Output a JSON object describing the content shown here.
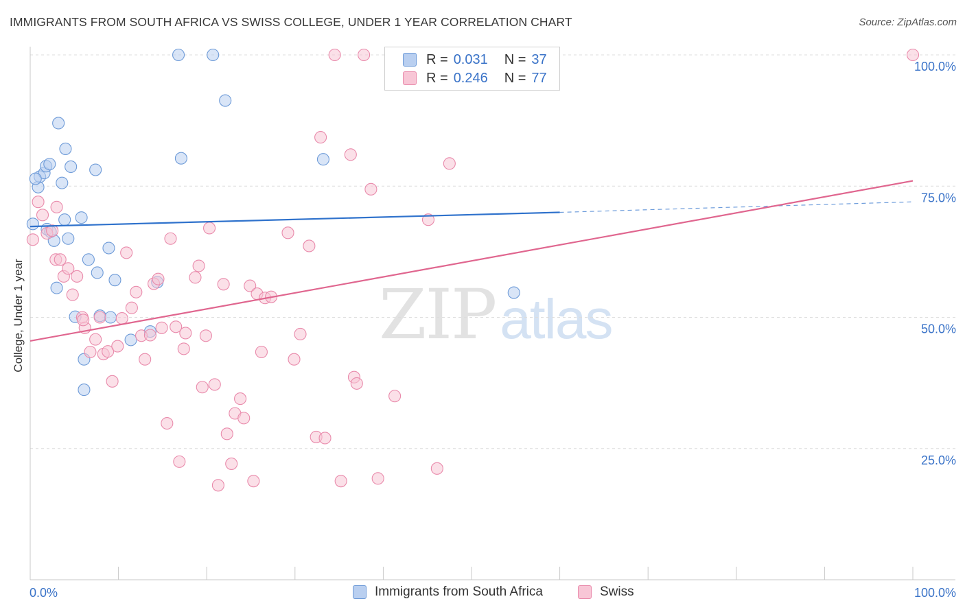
{
  "title": "IMMIGRANTS FROM SOUTH AFRICA VS SWISS COLLEGE, UNDER 1 YEAR CORRELATION CHART",
  "source": "Source: ZipAtlas.com",
  "watermark": {
    "zip": "ZIP",
    "atlas": "atlas"
  },
  "legend": {
    "r_label": "R =",
    "n_label": "N =",
    "series": [
      {
        "r": "0.031",
        "n": "37"
      },
      {
        "r": "0.246",
        "n": "77"
      }
    ]
  },
  "colors": {
    "blue_fill": "#b9cff0",
    "blue_stroke": "#6e9bd8",
    "blue_line": "#2f72cc",
    "pink_fill": "#f8c6d6",
    "pink_stroke": "#e98aab",
    "pink_line": "#e0668f",
    "tick_label": "#3a73c8",
    "grid": "#dcdcdc"
  },
  "chart_data": {
    "type": "scatter",
    "title": "IMMIGRANTS FROM SOUTH AFRICA VS SWISS COLLEGE, UNDER 1 YEAR CORRELATION CHART",
    "xlabel": "",
    "ylabel": "College, Under 1 year",
    "xlim": [
      0,
      100
    ],
    "ylim": [
      0,
      100
    ],
    "x_ticks": [
      "0.0%",
      "100.0%"
    ],
    "y_ticks": [
      {
        "value": 25,
        "label": "25.0%"
      },
      {
        "value": 50,
        "label": "50.0%"
      },
      {
        "value": 75,
        "label": "75.0%"
      },
      {
        "value": 100,
        "label": "100.0%"
      }
    ],
    "series": [
      {
        "name": "Immigrants from South Africa",
        "color": "blue",
        "trend": {
          "x0": 0,
          "y0": 67.3,
          "x1": 60,
          "y1": 70.0,
          "dash_to": 100,
          "dash_y": 72.0
        },
        "points": [
          [
            0.3,
            67.8
          ],
          [
            0.9,
            74.8
          ],
          [
            1.1,
            76.8
          ],
          [
            1.6,
            77.5
          ],
          [
            1.8,
            78.8
          ],
          [
            2.2,
            79.2
          ],
          [
            1.9,
            66.8
          ],
          [
            2.3,
            66.3
          ],
          [
            2.7,
            64.6
          ],
          [
            3.0,
            55.6
          ],
          [
            3.2,
            87.0
          ],
          [
            3.6,
            75.6
          ],
          [
            3.9,
            68.6
          ],
          [
            4.0,
            82.1
          ],
          [
            4.3,
            65.0
          ],
          [
            4.6,
            78.7
          ],
          [
            5.1,
            50.1
          ],
          [
            5.8,
            69.0
          ],
          [
            6.1,
            42.0
          ],
          [
            6.1,
            36.2
          ],
          [
            6.6,
            61.0
          ],
          [
            7.4,
            78.1
          ],
          [
            7.6,
            58.5
          ],
          [
            7.9,
            50.3
          ],
          [
            8.9,
            63.2
          ],
          [
            9.1,
            50.0
          ],
          [
            9.6,
            57.1
          ],
          [
            11.4,
            45.7
          ],
          [
            13.6,
            47.3
          ],
          [
            14.4,
            56.7
          ],
          [
            16.8,
            100.0
          ],
          [
            17.1,
            80.3
          ],
          [
            20.7,
            100.0
          ],
          [
            22.1,
            91.3
          ],
          [
            33.2,
            80.1
          ],
          [
            54.8,
            54.7
          ],
          [
            0.6,
            76.4
          ]
        ]
      },
      {
        "name": "Swiss",
        "color": "pink",
        "trend": {
          "x0": 0,
          "y0": 45.5,
          "x1": 100,
          "y1": 76.0
        },
        "points": [
          [
            0.3,
            64.8
          ],
          [
            0.9,
            72.0
          ],
          [
            1.4,
            69.5
          ],
          [
            1.9,
            66.0
          ],
          [
            2.5,
            66.5
          ],
          [
            2.9,
            61.0
          ],
          [
            3.4,
            61.0
          ],
          [
            3.8,
            57.8
          ],
          [
            4.3,
            59.3
          ],
          [
            4.8,
            54.3
          ],
          [
            5.3,
            57.8
          ],
          [
            5.9,
            50.0
          ],
          [
            6.2,
            48.0
          ],
          [
            6.8,
            43.4
          ],
          [
            7.4,
            45.8
          ],
          [
            7.9,
            50.0
          ],
          [
            8.3,
            43.0
          ],
          [
            8.8,
            43.5
          ],
          [
            9.3,
            37.8
          ],
          [
            9.9,
            44.5
          ],
          [
            10.4,
            49.8
          ],
          [
            10.9,
            62.3
          ],
          [
            11.5,
            51.8
          ],
          [
            12.0,
            54.8
          ],
          [
            12.6,
            46.5
          ],
          [
            13.0,
            42.0
          ],
          [
            13.6,
            46.6
          ],
          [
            14.0,
            56.4
          ],
          [
            14.5,
            57.3
          ],
          [
            14.9,
            48.0
          ],
          [
            15.5,
            29.8
          ],
          [
            15.9,
            65.0
          ],
          [
            16.5,
            48.2
          ],
          [
            16.9,
            22.5
          ],
          [
            17.4,
            44.0
          ],
          [
            17.6,
            47.0
          ],
          [
            18.7,
            57.6
          ],
          [
            19.1,
            59.8
          ],
          [
            19.5,
            36.7
          ],
          [
            19.9,
            46.5
          ],
          [
            20.3,
            67.0
          ],
          [
            20.9,
            37.2
          ],
          [
            21.3,
            18.0
          ],
          [
            21.9,
            56.3
          ],
          [
            22.3,
            27.8
          ],
          [
            22.8,
            22.1
          ],
          [
            23.2,
            31.7
          ],
          [
            23.8,
            34.5
          ],
          [
            24.2,
            30.8
          ],
          [
            24.9,
            56.0
          ],
          [
            25.3,
            18.8
          ],
          [
            25.7,
            54.5
          ],
          [
            26.2,
            43.4
          ],
          [
            26.6,
            53.7
          ],
          [
            27.3,
            53.9
          ],
          [
            29.2,
            66.1
          ],
          [
            29.9,
            42.0
          ],
          [
            30.6,
            46.8
          ],
          [
            31.6,
            63.6
          ],
          [
            32.4,
            27.2
          ],
          [
            32.9,
            84.3
          ],
          [
            33.4,
            27.0
          ],
          [
            34.5,
            100.0
          ],
          [
            35.2,
            18.8
          ],
          [
            36.3,
            81.0
          ],
          [
            36.7,
            38.6
          ],
          [
            37.0,
            37.4
          ],
          [
            37.8,
            100.0
          ],
          [
            38.6,
            74.4
          ],
          [
            39.4,
            19.3
          ],
          [
            41.3,
            35.0
          ],
          [
            45.1,
            68.6
          ],
          [
            46.1,
            21.2
          ],
          [
            47.5,
            79.3
          ],
          [
            100.0,
            100.0
          ],
          [
            3.0,
            71.0
          ],
          [
            6.0,
            49.5
          ]
        ]
      }
    ]
  },
  "bottom_legend": [
    {
      "label": "Immigrants from South Africa"
    },
    {
      "label": "Swiss"
    }
  ]
}
